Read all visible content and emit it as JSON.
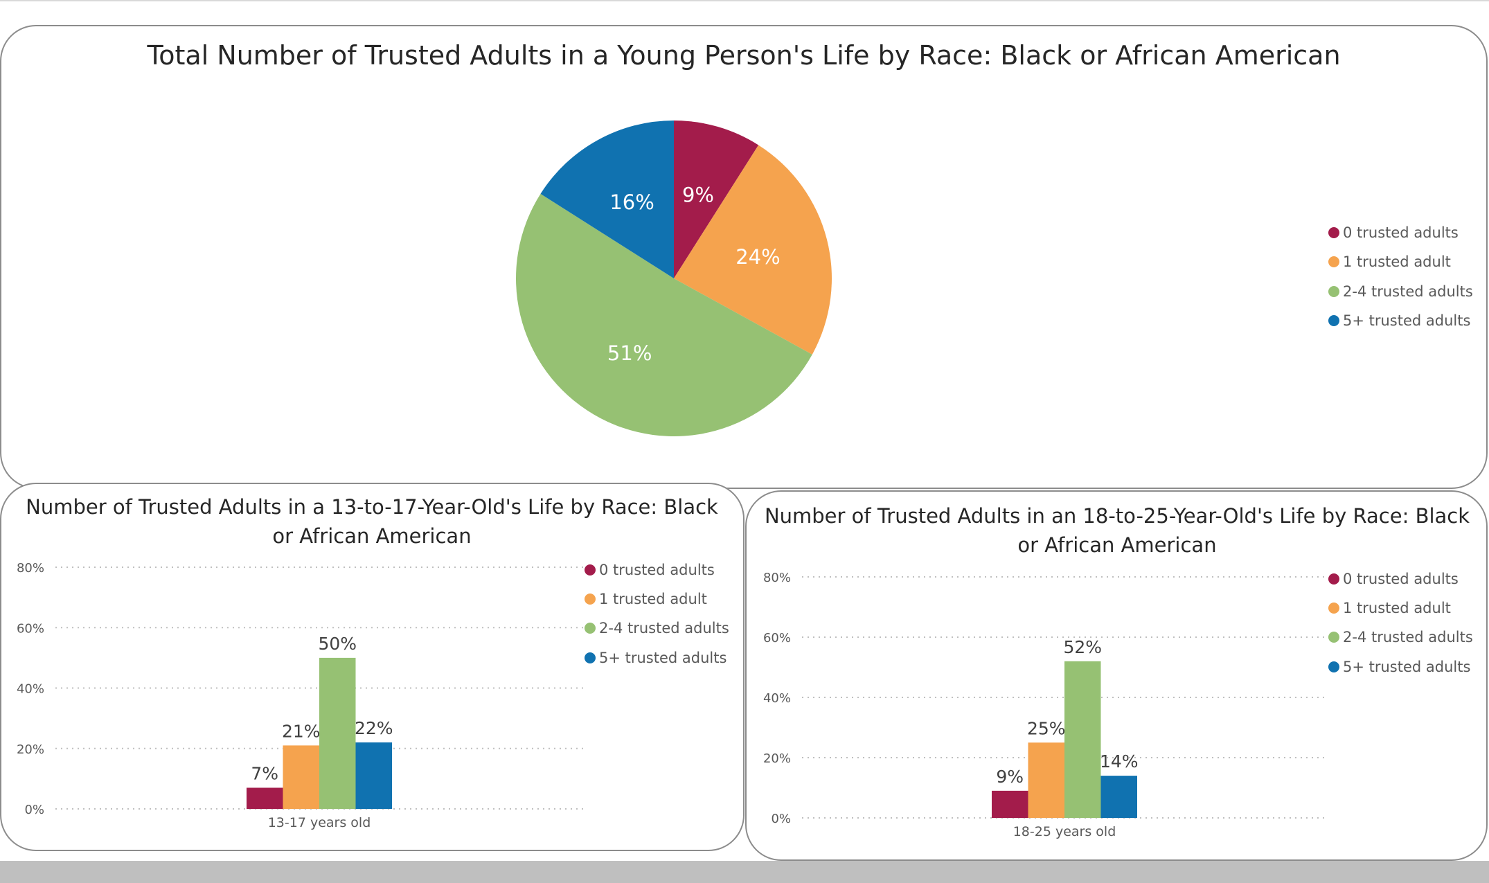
{
  "colors": {
    "0_trusted": "#a31c4b",
    "1_trusted": "#f5a34e",
    "2_4_trusted": "#96c173",
    "5_plus": "#1072b0"
  },
  "chart_data": [
    {
      "type": "pie",
      "title": "Total Number of Trusted Adults in a Young Person's Life by Race: Black or African American",
      "categories": [
        "0 trusted adults",
        "1 trusted adult",
        "2-4 trusted adults",
        "5+ trusted adults"
      ],
      "values": [
        9,
        24,
        51,
        16
      ],
      "value_labels": [
        "9%",
        "24%",
        "51%",
        "16%"
      ],
      "legend": "right"
    },
    {
      "type": "bar",
      "title": "Number of Trusted Adults in a 13-to-17-Year-Old's Life by Race: Black or African American",
      "categories": [
        "13-17 years old"
      ],
      "series": [
        {
          "name": "0 trusted adults",
          "values": [
            7
          ],
          "label": "7%"
        },
        {
          "name": "1 trusted adult",
          "values": [
            21
          ],
          "label": "21%"
        },
        {
          "name": "2-4 trusted adults",
          "values": [
            50
          ],
          "label": "50%"
        },
        {
          "name": "5+ trusted adults",
          "values": [
            22
          ],
          "label": "22%"
        }
      ],
      "ylim": [
        0,
        80
      ],
      "yticks": [
        "0%",
        "20%",
        "40%",
        "60%",
        "80%"
      ],
      "grid": true,
      "legend": "right"
    },
    {
      "type": "bar",
      "title": "Number of Trusted Adults in an 18-to-25-Year-Old's Life by Race: Black or African American",
      "categories": [
        "18-25 years old"
      ],
      "series": [
        {
          "name": "0 trusted adults",
          "values": [
            9
          ],
          "label": "9%"
        },
        {
          "name": "1 trusted adult",
          "values": [
            25
          ],
          "label": "25%"
        },
        {
          "name": "2-4 trusted adults",
          "values": [
            52
          ],
          "label": "52%"
        },
        {
          "name": "5+ trusted adults",
          "values": [
            14
          ],
          "label": "14%"
        }
      ],
      "ylim": [
        0,
        80
      ],
      "yticks": [
        "0%",
        "20%",
        "40%",
        "60%",
        "80%"
      ],
      "grid": true,
      "legend": "right"
    }
  ]
}
